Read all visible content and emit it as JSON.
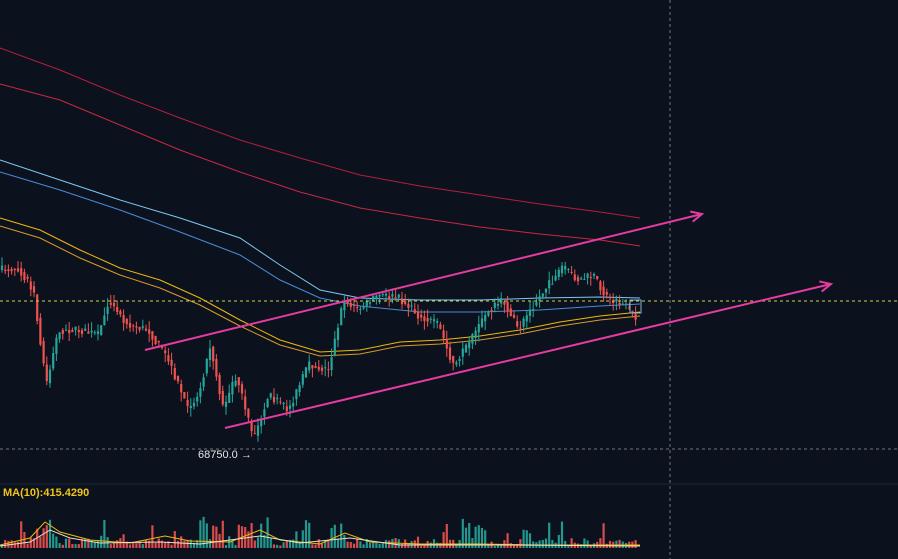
{
  "chart_data": {
    "type": "candlestick",
    "title": "",
    "xlabel": "",
    "ylabel": "",
    "annotations": {
      "low_marker": "68750.0 →"
    },
    "volume_panel": {
      "indicator_label": "MA(10):415.4290"
    },
    "colors": {
      "background": "#0c111e",
      "up": "#26a69a",
      "down": "#ef5350",
      "ma_yellow": "#f0b90b",
      "ma_orange": "#d99a2b",
      "ma_blue_light": "#7ec8f2",
      "ma_blue": "#4a8bd8",
      "ma_red_1": "#b1203a",
      "ma_red_2": "#c8283f",
      "trendline": "#e63ca0",
      "crosshair": "#9aa0a6",
      "price_line": "#c8d44a"
    }
  },
  "annotations": {
    "low_marker": "68750.0 →"
  },
  "volume_panel": {
    "indicator_label": "MA(10):415.4290"
  }
}
